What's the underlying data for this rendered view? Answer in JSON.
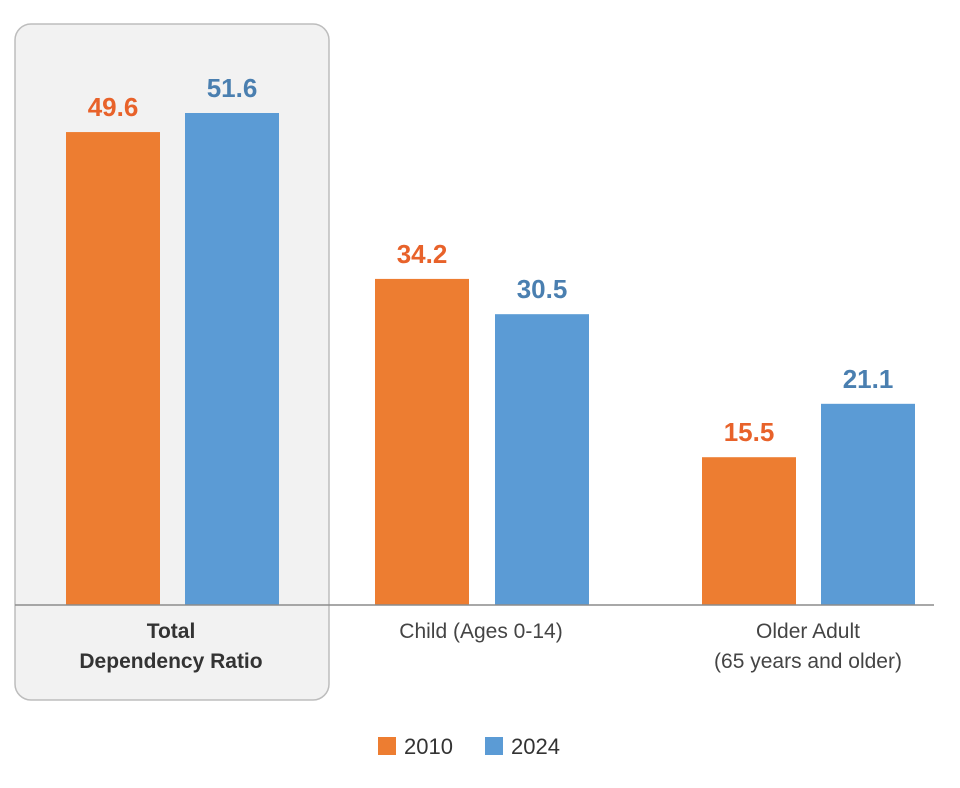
{
  "chart_data": {
    "type": "bar",
    "categories": [
      {
        "lines": [
          "Total",
          "Dependency Ratio"
        ],
        "highlighted": true
      },
      {
        "lines": [
          "Child (Ages 0-14)"
        ],
        "highlighted": false
      },
      {
        "lines": [
          "Older Adult",
          "(65 years and older)"
        ],
        "highlighted": false
      }
    ],
    "series": [
      {
        "name": "2010",
        "color": "#ED7D31",
        "label_color": "#E8622A",
        "values": [
          49.6,
          34.2,
          15.5
        ]
      },
      {
        "name": "2024",
        "color": "#5B9BD5",
        "label_color": "#4A7FB0",
        "values": [
          51.6,
          30.5,
          21.1
        ]
      }
    ],
    "value_labels": [
      [
        "49.6",
        "34.2",
        "15.5"
      ],
      [
        "51.6",
        "30.5",
        "21.1"
      ]
    ],
    "ylim": [
      0,
      60
    ],
    "legend": "bottom-center",
    "grid": false
  }
}
